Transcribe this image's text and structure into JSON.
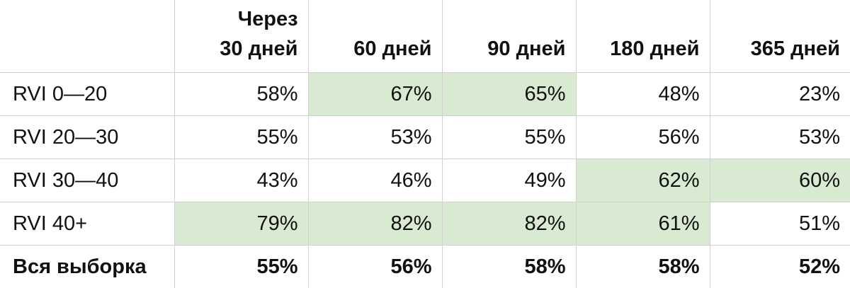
{
  "header": {
    "corner": "",
    "columns": [
      "Через\n30 дней",
      "60 дней",
      "90 дней",
      "180 дней",
      "365 дней"
    ]
  },
  "rows": [
    {
      "label": "RVI 0—20",
      "values": [
        "58%",
        "67%",
        "65%",
        "48%",
        "23%"
      ],
      "highlight": [
        false,
        true,
        true,
        false,
        false
      ]
    },
    {
      "label": "RVI 20—30",
      "values": [
        "55%",
        "53%",
        "55%",
        "56%",
        "53%"
      ],
      "highlight": [
        false,
        false,
        false,
        false,
        false
      ]
    },
    {
      "label": "RVI 30—40",
      "values": [
        "43%",
        "46%",
        "49%",
        "62%",
        "60%"
      ],
      "highlight": [
        false,
        false,
        false,
        true,
        true
      ]
    },
    {
      "label": "RVI 40+",
      "values": [
        "79%",
        "82%",
        "82%",
        "61%",
        "51%"
      ],
      "highlight": [
        true,
        true,
        true,
        true,
        false
      ]
    }
  ],
  "total": {
    "label": "Вся выборка",
    "values": [
      "55%",
      "56%",
      "58%",
      "58%",
      "52%"
    ]
  },
  "colors": {
    "highlight": "#d9ead3",
    "grid": "#d0d0d0",
    "text": "#111111"
  }
}
